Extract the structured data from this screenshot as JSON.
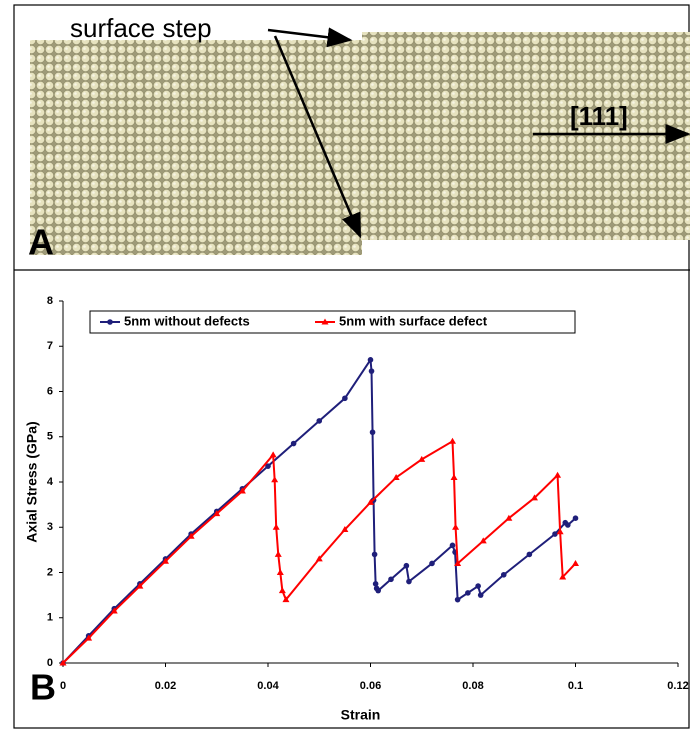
{
  "panel_a": {
    "label": "A",
    "annotations": [
      "surface step",
      "[111]"
    ]
  },
  "chart_data": {
    "type": "line",
    "panel_label": "B",
    "xlabel": "Strain",
    "ylabel": "Axial Stress (GPa)",
    "xlim": [
      0,
      0.12
    ],
    "xticks": [
      0,
      0.02,
      0.04,
      0.06,
      0.08,
      0.1,
      0.12
    ],
    "ylim": [
      0,
      8
    ],
    "yticks": [
      0,
      1,
      2,
      3,
      4,
      5,
      6,
      7,
      8
    ],
    "legend": "top",
    "series": [
      {
        "name": "5nm without defects",
        "color": "#1f1f7a",
        "marker": "circle",
        "x": [
          0,
          0.005,
          0.01,
          0.015,
          0.02,
          0.025,
          0.03,
          0.035,
          0.04,
          0.045,
          0.05,
          0.055,
          0.06,
          0.0602,
          0.0604,
          0.0606,
          0.0608,
          0.061,
          0.0612,
          0.0615,
          0.064,
          0.067,
          0.0675,
          0.072,
          0.076,
          0.0765,
          0.077,
          0.079,
          0.081,
          0.0815,
          0.086,
          0.091,
          0.096,
          0.098,
          0.0985,
          0.1
        ],
        "values": [
          0,
          0.6,
          1.2,
          1.75,
          2.3,
          2.85,
          3.35,
          3.85,
          4.35,
          4.85,
          5.35,
          5.85,
          6.7,
          6.45,
          5.1,
          3.6,
          2.4,
          1.75,
          1.65,
          1.6,
          1.85,
          2.15,
          1.8,
          2.2,
          2.6,
          2.45,
          1.4,
          1.55,
          1.7,
          1.5,
          1.95,
          2.4,
          2.85,
          3.1,
          3.05,
          3.2
        ]
      },
      {
        "name": "5nm with surface defect",
        "color": "#ff0000",
        "marker": "triangle",
        "x": [
          0,
          0.005,
          0.01,
          0.015,
          0.02,
          0.025,
          0.03,
          0.035,
          0.041,
          0.0413,
          0.0416,
          0.042,
          0.0424,
          0.0428,
          0.0435,
          0.05,
          0.055,
          0.06,
          0.065,
          0.07,
          0.076,
          0.0763,
          0.0766,
          0.077,
          0.082,
          0.087,
          0.092,
          0.0965,
          0.097,
          0.0975,
          0.1
        ],
        "values": [
          0,
          0.55,
          1.15,
          1.7,
          2.25,
          2.8,
          3.3,
          3.8,
          4.6,
          4.05,
          3.0,
          2.4,
          2.0,
          1.6,
          1.4,
          2.3,
          2.95,
          3.55,
          4.1,
          4.5,
          4.9,
          4.1,
          3.0,
          2.2,
          2.7,
          3.2,
          3.65,
          4.15,
          2.9,
          1.9,
          2.2
        ]
      }
    ]
  }
}
